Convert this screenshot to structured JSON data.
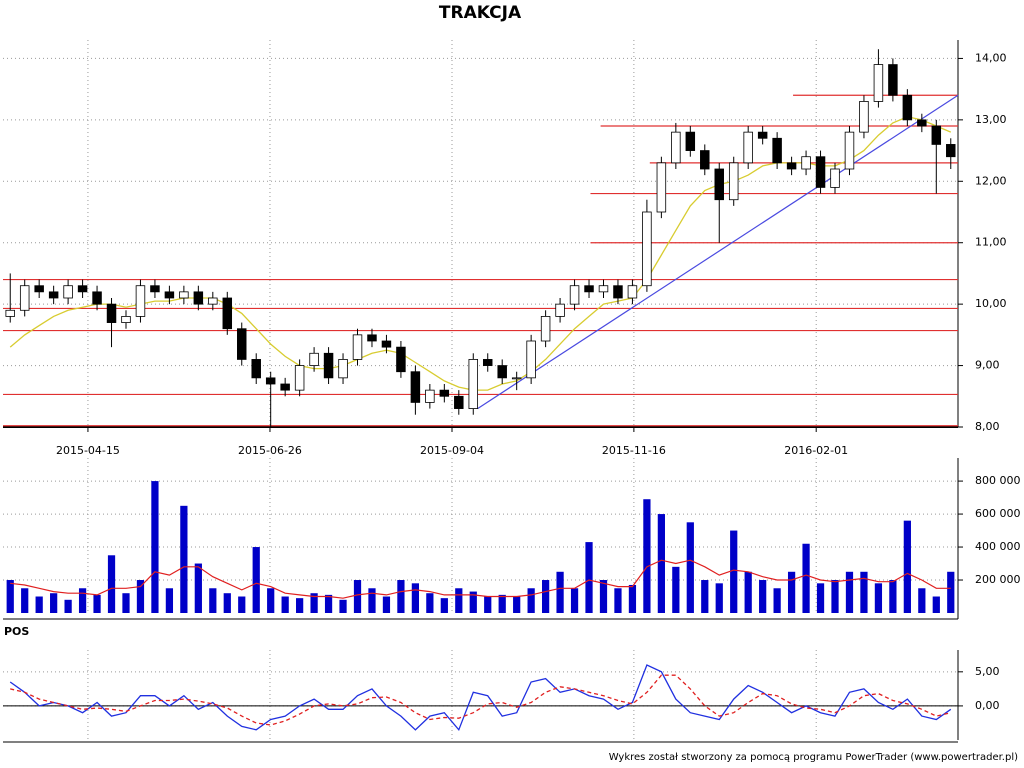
{
  "chart_data": [
    {
      "type": "candlestick",
      "title": "TRAKCJA",
      "xlim": [
        0,
        66
      ],
      "xticks": [
        {
          "value": 5.87,
          "label": "2015-04-15"
        },
        {
          "value": 18.45,
          "label": "2015-06-26"
        },
        {
          "value": 31.03,
          "label": "2015-09-04"
        },
        {
          "value": 43.6,
          "label": "2015-11-16"
        },
        {
          "value": 56.2,
          "label": "2016-02-01"
        }
      ],
      "ylim": [
        8,
        14.3
      ],
      "yticks": [
        {
          "value": 8,
          "label": "8,00"
        },
        {
          "value": 9,
          "label": "9,00"
        },
        {
          "value": 10,
          "label": "10,00"
        },
        {
          "value": 11,
          "label": "11,00"
        },
        {
          "value": 12,
          "label": "12,00"
        },
        {
          "value": 13,
          "label": "13,00"
        },
        {
          "value": 14,
          "label": "14,00"
        }
      ],
      "grid": true,
      "open": [
        9.8,
        9.9,
        10.3,
        10.2,
        10.1,
        10.3,
        10.2,
        10.0,
        9.7,
        9.8,
        10.3,
        10.2,
        10.1,
        10.2,
        10.0,
        10.1,
        9.6,
        9.1,
        8.8,
        8.7,
        8.6,
        9.0,
        9.2,
        8.8,
        9.1,
        9.5,
        9.4,
        9.3,
        8.9,
        8.4,
        8.6,
        8.5,
        8.3,
        9.1,
        9.0,
        8.8,
        8.8,
        9.4,
        9.8,
        10.0,
        10.3,
        10.2,
        10.3,
        10.1,
        10.3,
        11.5,
        12.3,
        12.8,
        12.5,
        12.2,
        11.7,
        12.3,
        12.8,
        12.7,
        12.3,
        12.2,
        12.4,
        11.9,
        12.2,
        12.8,
        13.3,
        13.9,
        13.4,
        13.0,
        12.9,
        12.6
      ],
      "high": [
        10.5,
        10.4,
        10.4,
        10.3,
        10.4,
        10.4,
        10.3,
        10.1,
        9.9,
        10.4,
        10.4,
        10.3,
        10.3,
        10.3,
        10.2,
        10.2,
        9.7,
        9.2,
        8.9,
        8.8,
        9.1,
        9.3,
        9.3,
        9.2,
        9.6,
        9.6,
        9.5,
        9.4,
        9.0,
        8.7,
        8.7,
        8.6,
        9.2,
        9.2,
        9.1,
        8.9,
        9.5,
        9.9,
        10.1,
        10.4,
        10.4,
        10.4,
        10.4,
        10.4,
        11.7,
        12.4,
        12.95,
        12.9,
        12.6,
        12.3,
        12.4,
        12.9,
        12.9,
        12.8,
        12.4,
        12.5,
        12.5,
        12.3,
        12.9,
        13.4,
        14.15,
        14.0,
        13.5,
        13.1,
        13.0,
        12.7
      ],
      "low": [
        9.7,
        9.8,
        10.1,
        10.0,
        10.0,
        10.1,
        9.9,
        9.3,
        9.6,
        9.7,
        10.1,
        10.0,
        10.0,
        9.9,
        9.9,
        9.5,
        9.0,
        8.7,
        8.0,
        8.5,
        8.5,
        8.9,
        8.7,
        8.7,
        9.0,
        9.3,
        9.2,
        8.8,
        8.2,
        8.3,
        8.4,
        8.2,
        8.2,
        8.9,
        8.7,
        8.6,
        8.7,
        9.3,
        9.7,
        9.9,
        10.1,
        10.1,
        10.0,
        10.0,
        10.2,
        11.4,
        12.2,
        12.4,
        12.1,
        11.0,
        11.6,
        12.2,
        12.6,
        12.2,
        12.1,
        12.1,
        11.8,
        11.8,
        12.1,
        12.7,
        13.2,
        13.3,
        12.9,
        12.8,
        11.8,
        12.2
      ],
      "close": [
        9.9,
        10.3,
        10.2,
        10.1,
        10.3,
        10.2,
        10.0,
        9.7,
        9.8,
        10.3,
        10.2,
        10.1,
        10.2,
        10.0,
        10.1,
        9.6,
        9.1,
        8.8,
        8.7,
        8.6,
        9.0,
        9.2,
        8.8,
        9.1,
        9.5,
        9.4,
        9.3,
        8.9,
        8.4,
        8.6,
        8.5,
        8.3,
        9.1,
        9.0,
        8.8,
        8.8,
        9.4,
        9.8,
        10.0,
        10.3,
        10.2,
        10.3,
        10.1,
        10.3,
        11.5,
        12.3,
        12.8,
        12.5,
        12.2,
        11.7,
        12.3,
        12.8,
        12.7,
        12.3,
        12.2,
        12.4,
        11.9,
        12.2,
        12.8,
        13.3,
        13.9,
        13.4,
        13.0,
        12.9,
        12.6,
        12.4
      ],
      "up_color": "#ffffff",
      "down_color": "#000000",
      "series": [
        {
          "color": "#d8cc30",
          "values": [
            9.3,
            9.5,
            9.65,
            9.8,
            9.9,
            9.95,
            10.0,
            10.0,
            9.95,
            10.0,
            10.05,
            10.05,
            10.1,
            10.1,
            10.1,
            10.0,
            9.85,
            9.6,
            9.35,
            9.15,
            9.0,
            8.95,
            8.95,
            9.0,
            9.1,
            9.2,
            9.25,
            9.2,
            9.05,
            8.9,
            8.75,
            8.65,
            8.6,
            8.6,
            8.7,
            8.75,
            8.9,
            9.1,
            9.35,
            9.6,
            9.8,
            10.0,
            10.05,
            10.1,
            10.4,
            10.8,
            11.2,
            11.6,
            11.85,
            11.95,
            12.0,
            12.1,
            12.25,
            12.3,
            12.3,
            12.3,
            12.25,
            12.25,
            12.35,
            12.5,
            12.75,
            12.95,
            13.05,
            13.0,
            12.9,
            12.8
          ]
        }
      ],
      "levels": [
        13.4,
        12.9,
        12.3,
        11.8,
        11.0,
        10.4,
        9.93,
        9.57,
        8.53,
        8.02
      ],
      "levels_color": "#e03030",
      "trendline": {
        "x": [
          32.8,
          66
        ],
        "y": [
          8.3,
          13.4
        ],
        "color": "#4a4ae0"
      }
    },
    {
      "type": "bar",
      "color": "#0000c8",
      "values": [
        200000,
        150000,
        100000,
        120000,
        80000,
        150000,
        110000,
        350000,
        120000,
        200000,
        800000,
        150000,
        650000,
        300000,
        150000,
        120000,
        100000,
        400000,
        150000,
        100000,
        90000,
        120000,
        110000,
        80000,
        200000,
        150000,
        100000,
        200000,
        180000,
        120000,
        90000,
        150000,
        130000,
        100000,
        110000,
        100000,
        150000,
        200000,
        250000,
        150000,
        430000,
        200000,
        150000,
        170000,
        690000,
        600000,
        280000,
        550000,
        200000,
        180000,
        500000,
        250000,
        200000,
        150000,
        250000,
        420000,
        180000,
        200000,
        250000,
        250000,
        180000,
        200000,
        560000,
        150000,
        100000,
        250000
      ],
      "series": [
        {
          "color": "#e02020",
          "values": [
            180000,
            170000,
            150000,
            130000,
            120000,
            120000,
            110000,
            150000,
            150000,
            160000,
            250000,
            230000,
            280000,
            280000,
            220000,
            180000,
            140000,
            180000,
            160000,
            120000,
            110000,
            100000,
            100000,
            90000,
            110000,
            120000,
            110000,
            130000,
            140000,
            130000,
            110000,
            110000,
            110000,
            100000,
            100000,
            100000,
            110000,
            130000,
            150000,
            150000,
            200000,
            180000,
            160000,
            160000,
            280000,
            320000,
            300000,
            320000,
            280000,
            230000,
            260000,
            250000,
            220000,
            200000,
            200000,
            230000,
            200000,
            190000,
            200000,
            210000,
            190000,
            190000,
            240000,
            200000,
            150000,
            150000
          ]
        }
      ],
      "ylim": [
        0,
        940000
      ],
      "yticks": [
        {
          "value": 200000,
          "label": "200 000"
        },
        {
          "value": 400000,
          "label": "400 000"
        },
        {
          "value": 600000,
          "label": "600 000"
        },
        {
          "value": 800000,
          "label": "800 000"
        }
      ],
      "grid": true
    },
    {
      "type": "line",
      "title": "POS",
      "series": [
        {
          "color": "#2030e0",
          "style": "solid",
          "values": [
            3.5,
            2,
            0,
            0.5,
            0,
            -1,
            0.5,
            -1.5,
            -1,
            1.5,
            1.5,
            0,
            1.5,
            -0.5,
            0.5,
            -1.5,
            -3,
            -3.5,
            -2,
            -1.5,
            0,
            1,
            -0.5,
            -0.5,
            1.5,
            2.5,
            0,
            -1.5,
            -3.5,
            -1.5,
            -1,
            -3.5,
            2,
            1.5,
            -1.5,
            -1,
            3.5,
            4,
            2,
            2.5,
            1.5,
            1,
            -0.5,
            0.5,
            6,
            5,
            1,
            -1,
            -1.5,
            -2,
            1,
            3,
            2,
            0.5,
            -1,
            0,
            -1,
            -1.5,
            2,
            2.5,
            0.5,
            -0.5,
            1,
            -1.5,
            -2,
            -0.5
          ]
        },
        {
          "color": "#e02020",
          "style": "dashed",
          "values": [
            2.5,
            2,
            1,
            0.5,
            0,
            -0.5,
            -0.3,
            -0.5,
            -0.8,
            0,
            0.8,
            0.8,
            1,
            0.7,
            0.3,
            -0.3,
            -1.5,
            -2.5,
            -2.8,
            -2.2,
            -1.2,
            0,
            0.3,
            0,
            0.3,
            1.2,
            1.3,
            0.5,
            -1,
            -2,
            -1.7,
            -1.8,
            -1,
            0.3,
            0.5,
            -0.2,
            0.5,
            2,
            2.8,
            2.5,
            2,
            1.5,
            0.8,
            0.3,
            2,
            4.5,
            4.5,
            2.5,
            0,
            -1.5,
            -1,
            0.5,
            1.8,
            1.5,
            0.3,
            -0.3,
            -0.5,
            -1,
            0,
            1.5,
            1.8,
            0.8,
            0.3,
            -0.5,
            -1.5,
            -1
          ]
        }
      ],
      "ylim": [
        -5,
        8.2
      ],
      "yticks": [
        {
          "value": 0,
          "label": "0,00"
        },
        {
          "value": 5,
          "label": "5,00"
        }
      ],
      "grid": true
    }
  ],
  "footer": "Wykres został stworzony za pomocą programu PowerTrader (www.powertrader.pl)"
}
